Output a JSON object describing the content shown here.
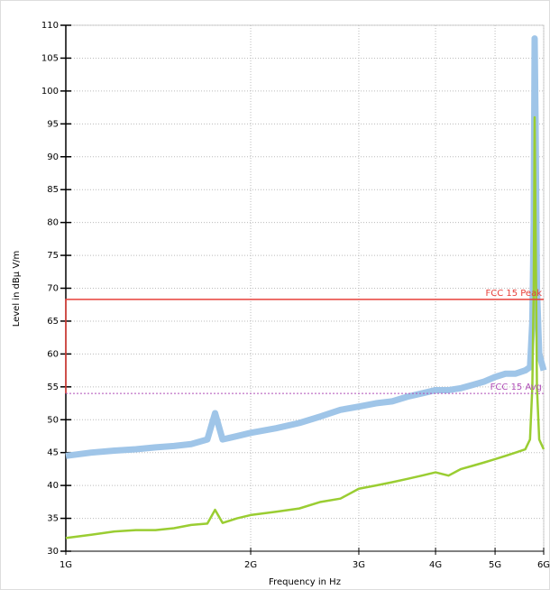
{
  "chart_data": {
    "type": "line",
    "y_label": "Level in dBµ V/m",
    "x_label": "Frequency in Hz",
    "xlim": [
      1000000000,
      6000000000
    ],
    "xlog": true,
    "xticks": [
      {
        "value": 1000000000,
        "label": "1G"
      },
      {
        "value": 2000000000,
        "label": "2G"
      },
      {
        "value": 3000000000,
        "label": "3G"
      },
      {
        "value": 4000000000,
        "label": "4G"
      },
      {
        "value": 5000000000,
        "label": "5G"
      },
      {
        "value": 6000000000,
        "label": "6G"
      }
    ],
    "ylim": [
      30,
      110
    ],
    "yticks": [
      30,
      35,
      40,
      45,
      50,
      55,
      60,
      65,
      70,
      75,
      80,
      85,
      90,
      95,
      100,
      105,
      110
    ],
    "grid": true,
    "series": [
      {
        "color": "#9fc5e8",
        "width": 7,
        "x": [
          1000000000,
          1100000000,
          1200000000,
          1300000000,
          1400000000,
          1500000000,
          1600000000,
          1700000000,
          1750000000,
          1800000000,
          1900000000,
          2000000000,
          2200000000,
          2400000000,
          2600000000,
          2800000000,
          3000000000,
          3200000000,
          3400000000,
          3600000000,
          3800000000,
          4000000000,
          4200000000,
          4400000000,
          4600000000,
          4800000000,
          5000000000,
          5200000000,
          5400000000,
          5600000000,
          5700000000,
          5750000000,
          5780000000,
          5800000000,
          5820000000,
          5850000000,
          5900000000,
          6000000000
        ],
        "values": [
          44.5,
          45,
          45.3,
          45.5,
          45.8,
          46,
          46.3,
          47,
          51,
          47,
          47.5,
          48,
          48.7,
          49.5,
          50.5,
          51.5,
          52,
          52.5,
          52.8,
          53.5,
          54,
          54.5,
          54.5,
          54.8,
          55.3,
          55.8,
          56.5,
          57,
          57,
          57.5,
          58,
          65,
          80,
          108,
          95,
          70,
          60,
          57.5
        ]
      },
      {
        "color": "#9acd32",
        "width": 2.5,
        "x": [
          1000000000,
          1100000000,
          1200000000,
          1300000000,
          1400000000,
          1500000000,
          1600000000,
          1700000000,
          1750000000,
          1800000000,
          1900000000,
          2000000000,
          2200000000,
          2400000000,
          2600000000,
          2800000000,
          3000000000,
          3200000000,
          3400000000,
          3600000000,
          3800000000,
          4000000000,
          4200000000,
          4400000000,
          4600000000,
          4800000000,
          5000000000,
          5200000000,
          5400000000,
          5600000000,
          5700000000,
          5750000000,
          5780000000,
          5800000000,
          5820000000,
          5850000000,
          5900000000,
          6000000000
        ],
        "values": [
          32,
          32.5,
          33,
          33.2,
          33.2,
          33.5,
          34,
          34.2,
          36.3,
          34.3,
          35,
          35.5,
          36,
          36.5,
          37.5,
          38,
          39.5,
          40,
          40.5,
          41,
          41.5,
          42,
          41.5,
          42.5,
          43,
          43.5,
          44,
          44.5,
          45,
          45.5,
          47,
          55,
          70,
          96,
          80,
          55,
          47,
          45.5
        ]
      },
      {
        "name": "FCC 15 Peak",
        "color": "#e8403a",
        "width": 1.5,
        "x": [
          1000000000,
          1000000000,
          6000000000
        ],
        "values": [
          54,
          68.3,
          68.3
        ]
      },
      {
        "name": "FCC 15 Avg",
        "color": "#b04fb8",
        "width": 1,
        "dash": true,
        "x": [
          1000000000,
          6000000000
        ],
        "values": [
          54,
          54
        ]
      }
    ]
  }
}
